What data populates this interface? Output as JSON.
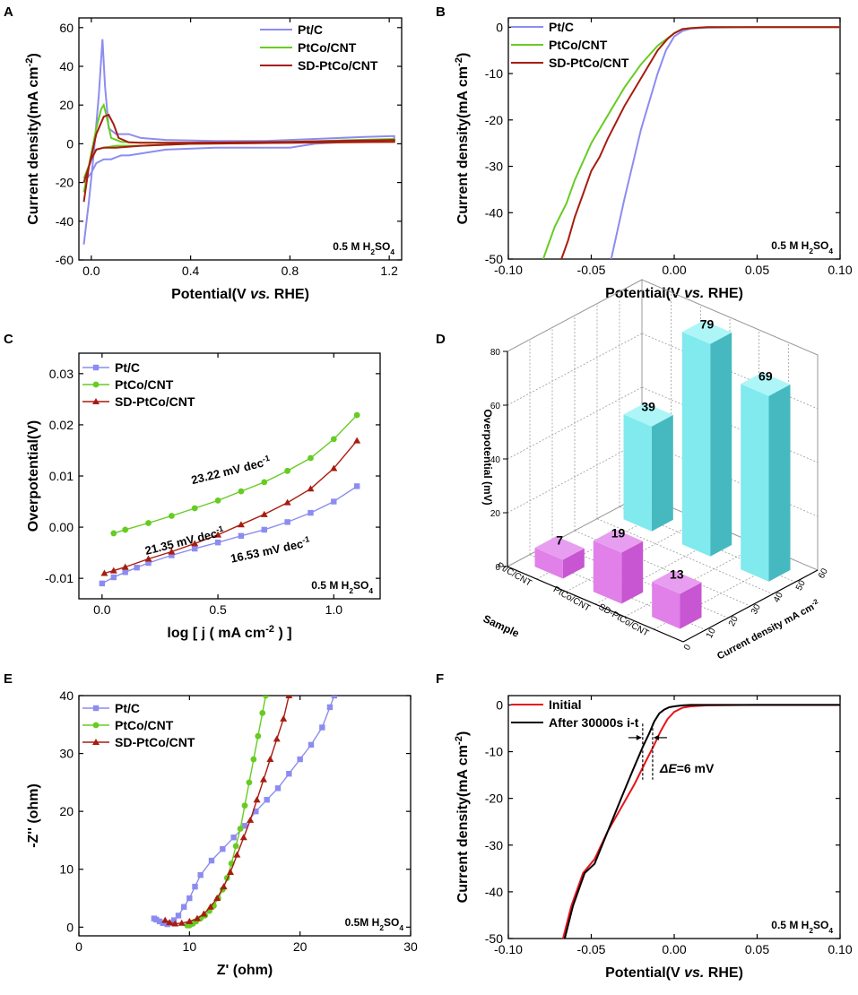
{
  "figure": {
    "panel_letters": [
      "A",
      "B",
      "C",
      "D",
      "E",
      "F"
    ]
  },
  "chart_data": [
    {
      "panel": "A",
      "type": "line",
      "xlabel": "Potential(V vs. RHE)",
      "ylabel": "Current density(mA cm-2)",
      "xlim": [
        -0.05,
        1.25
      ],
      "ylim": [
        -60,
        65
      ],
      "xticks": [
        0,
        0.4,
        0.8,
        1.2
      ],
      "xtick_labels": [
        "0.0",
        "0.4",
        "0.8",
        "1.2"
      ],
      "yticks": [
        -60,
        -40,
        -20,
        0,
        20,
        40,
        60
      ],
      "annotation": "0.5 M H2SO4",
      "legend": "top-right",
      "series": [
        {
          "name": "Pt/C",
          "color": "#8c8cf0",
          "x": [
            -0.03,
            -0.01,
            0.01,
            0.03,
            0.045,
            0.055,
            0.07,
            0.1,
            0.15,
            0.2,
            0.3,
            0.5,
            0.7,
            0.9,
            1.1,
            1.22,
            1.22,
            1.1,
            0.9,
            0.8,
            0.7,
            0.5,
            0.3,
            0.2,
            0.15,
            0.12,
            0.1,
            0.08,
            0.05,
            0.02,
            0,
            -0.03
          ],
          "y": [
            -52,
            -30,
            -5,
            25,
            54,
            30,
            8,
            5,
            5,
            3,
            2,
            1.5,
            1.5,
            2.5,
            3.5,
            4,
            2,
            1.5,
            0,
            -2,
            -2,
            -2,
            -3,
            -5,
            -6,
            -6,
            -7,
            -8,
            -8,
            -10,
            -15,
            -20
          ]
        },
        {
          "name": "PtCo/CNT",
          "color": "#66cc22",
          "x": [
            -0.03,
            0,
            0.02,
            0.04,
            0.05,
            0.06,
            0.08,
            0.12,
            0.2,
            0.4,
            0.8,
            1.22,
            1.22,
            0.8,
            0.4,
            0.2,
            0.1,
            0.05,
            0.02,
            0,
            -0.03
          ],
          "y": [
            -25,
            -5,
            8,
            18,
            20,
            15,
            3,
            1,
            0.5,
            0.5,
            1,
            2.5,
            1,
            0.5,
            0,
            -1,
            -1,
            -2,
            -3,
            -8,
            -18
          ]
        },
        {
          "name": "SD-PtCo/CNT",
          "color": "#a81c10",
          "x": [
            -0.03,
            -0.01,
            0.02,
            0.05,
            0.07,
            0.09,
            0.11,
            0.15,
            0.2,
            0.4,
            0.8,
            1.22,
            1.22,
            0.8,
            0.4,
            0.2,
            0.1,
            0.05,
            0.02,
            0,
            -0.03
          ],
          "y": [
            -30,
            -12,
            5,
            14,
            15,
            10,
            3,
            0.8,
            0.5,
            0.5,
            1,
            2,
            1,
            0.5,
            0,
            -1,
            -2,
            -2,
            -3,
            -8,
            -20
          ]
        }
      ]
    },
    {
      "panel": "B",
      "type": "line",
      "xlabel": "Potential(V vs. RHE)",
      "ylabel": "Current density(mA cm-2)",
      "xlim": [
        -0.1,
        0.1
      ],
      "ylim": [
        -50,
        2
      ],
      "xticks": [
        -0.1,
        -0.05,
        0,
        0.05,
        0.1
      ],
      "xtick_labels": [
        "-0.10",
        "-0.05",
        "0.00",
        "0.05",
        "0.10"
      ],
      "yticks": [
        -50,
        -40,
        -30,
        -20,
        -10,
        0
      ],
      "annotation": "0.5 M H2SO4",
      "legend": "top-left",
      "series": [
        {
          "name": "Pt/C",
          "color": "#8c8cf0",
          "x": [
            -0.038,
            -0.03,
            -0.02,
            -0.01,
            -0.005,
            0,
            0.005,
            0.01,
            0.02,
            0.05,
            0.1
          ],
          "y": [
            -50,
            -37,
            -22,
            -10,
            -5,
            -2,
            -0.8,
            -0.3,
            -0.1,
            0,
            0
          ]
        },
        {
          "name": "PtCo/CNT",
          "color": "#66cc22",
          "x": [
            -0.079,
            -0.077,
            -0.072,
            -0.065,
            -0.06,
            -0.055,
            -0.05,
            -0.04,
            -0.03,
            -0.02,
            -0.01,
            0,
            0.005,
            0.01,
            0.02,
            0.05,
            0.1
          ],
          "y": [
            -50,
            -48,
            -43,
            -38,
            -33,
            -29,
            -25,
            -19,
            -13,
            -8,
            -4,
            -1.3,
            -0.4,
            -0.2,
            0,
            0,
            0
          ]
        },
        {
          "name": "SD-PtCo/CNT",
          "color": "#a81c10",
          "x": [
            -0.068,
            -0.064,
            -0.06,
            -0.055,
            -0.05,
            -0.045,
            -0.04,
            -0.03,
            -0.02,
            -0.01,
            -0.004,
            0,
            0.005,
            0.01,
            0.02,
            0.05,
            0.1
          ],
          "y": [
            -50,
            -46,
            -41,
            -36,
            -31,
            -28,
            -24,
            -17,
            -11,
            -5,
            -2.5,
            -1.3,
            -0.4,
            -0.2,
            0,
            0,
            0
          ]
        }
      ]
    },
    {
      "panel": "C",
      "type": "line",
      "xlabel": "log [ j ( mA cm-2 ) ]",
      "ylabel": "Overpotential(V)",
      "xlim": [
        -0.1,
        1.2
      ],
      "ylim": [
        -0.014,
        0.034
      ],
      "xticks": [
        0,
        0.5,
        1
      ],
      "xtick_labels": [
        "0.0",
        "0.5",
        "1.0"
      ],
      "yticks": [
        -0.01,
        0,
        0.01,
        0.02,
        0.03
      ],
      "ytick_labels": [
        "-0.01",
        "0.00",
        "0.01",
        "0.02",
        "0.03"
      ],
      "annotation": "0.5 M H2SO4",
      "legend": "top-left",
      "slope_labels": [
        {
          "text": "23.22 mV dec-1",
          "color": "#66cc22",
          "x": 0.56,
          "y": 0.0103
        },
        {
          "text": "21.35 mV dec-1",
          "color": "#a81c10",
          "x": 0.36,
          "y": -0.0035
        },
        {
          "text": "16.53 mV dec-1",
          "color": "#8822cc",
          "x": 0.73,
          "y": -0.0053
        }
      ],
      "series": [
        {
          "name": "Pt/C",
          "color": "#8c8cf0",
          "x": [
            0,
            0.05,
            0.1,
            0.15,
            0.2,
            0.3,
            0.4,
            0.5,
            0.6,
            0.7,
            0.8,
            0.9,
            1,
            1.1
          ],
          "y": [
            -0.011,
            -0.0098,
            -0.0088,
            -0.0079,
            -0.007,
            -0.0055,
            -0.0042,
            -0.003,
            -0.0017,
            -0.0005,
            0.001,
            0.0028,
            0.005,
            0.008
          ]
        },
        {
          "name": "PtCo/CNT",
          "color": "#66cc22",
          "x": [
            0.05,
            0.1,
            0.2,
            0.3,
            0.4,
            0.5,
            0.6,
            0.7,
            0.8,
            0.9,
            1,
            1.1
          ],
          "y": [
            -0.0012,
            -0.0005,
            0.0008,
            0.0022,
            0.0037,
            0.0052,
            0.007,
            0.0088,
            0.011,
            0.0135,
            0.0172,
            0.0219
          ]
        },
        {
          "name": "SD-PtCo/CNT",
          "color": "#a81c10",
          "x": [
            0.01,
            0.05,
            0.1,
            0.2,
            0.3,
            0.4,
            0.5,
            0.6,
            0.7,
            0.8,
            0.9,
            1,
            1.1
          ],
          "y": [
            -0.009,
            -0.0085,
            -0.0078,
            -0.0062,
            -0.0048,
            -0.0032,
            -0.0015,
            0.0005,
            0.0025,
            0.0048,
            0.0075,
            0.0115,
            0.0169
          ]
        }
      ]
    },
    {
      "panel": "D",
      "type": "bar3d",
      "zlabel": "Overpotential (mV)",
      "xaxis_label": "Sample",
      "yaxis_label": "Current density mA cm-2",
      "categories": [
        "Pt/C",
        "PtCo/CNT",
        "SD-PtCo/CNT"
      ],
      "category_labels": [
        "Pt/C/CNT",
        "PtCo/CNT",
        "SD-PtCo/CNT"
      ],
      "zticks": [
        0,
        20,
        40,
        60,
        80
      ],
      "depth_ticks": [
        0,
        10,
        20,
        30,
        40,
        50,
        60
      ],
      "bars": [
        {
          "name": "10 mA cm-2",
          "color": "#e080e8",
          "values": [
            7,
            19,
            13
          ]
        },
        {
          "name": "50 mA cm-2",
          "color": "#80eaee",
          "values": [
            39,
            79,
            69
          ]
        }
      ]
    },
    {
      "panel": "E",
      "type": "scatter",
      "xlabel": "Z' (ohm)",
      "ylabel": "-Z'' (ohm)",
      "xlim": [
        0,
        30
      ],
      "ylim": [
        -1.5,
        40
      ],
      "xticks": [
        0,
        10,
        20,
        30
      ],
      "yticks": [
        0,
        10,
        20,
        30,
        40
      ],
      "annotation": "0.5M H2SO4",
      "legend": "top-left",
      "series": [
        {
          "name": "Pt/C",
          "color": "#8c8cf0",
          "x": [
            6.8,
            7,
            7.3,
            7.6,
            8,
            8.3,
            8.6,
            9,
            9.5,
            10,
            10.5,
            11,
            12,
            13,
            14,
            15,
            16,
            17,
            18,
            19,
            20,
            21,
            22,
            22.7,
            23.1
          ],
          "y": [
            1.5,
            1.3,
            1,
            0.7,
            0.5,
            0.7,
            1.2,
            2,
            3.5,
            5,
            7,
            9,
            11.5,
            13.5,
            15.5,
            17.5,
            20,
            22,
            24,
            26.5,
            29,
            31.5,
            34.5,
            38,
            40
          ]
        },
        {
          "name": "PtCo/CNT",
          "color": "#66cc22",
          "x": [
            9.8,
            10,
            10.3,
            10.6,
            11,
            11.4,
            11.8,
            12.2,
            12.6,
            13,
            13.4,
            13.8,
            14.2,
            14.6,
            15,
            15.4,
            15.8,
            16.2,
            16.6,
            16.9
          ],
          "y": [
            0.3,
            0.3,
            0.6,
            1,
            1.5,
            2,
            2.8,
            3.7,
            5,
            6.5,
            8.5,
            11,
            14,
            17,
            21,
            25,
            29,
            33,
            37,
            40
          ]
        },
        {
          "name": "SD-PtCo/CNT",
          "color": "#a81c10",
          "x": [
            7.8,
            8.2,
            8.7,
            9.3,
            10,
            10.7,
            11.3,
            11.9,
            12.5,
            13.1,
            13.7,
            14.3,
            14.9,
            15.5,
            16.1,
            16.7,
            17.3,
            17.9,
            18.5,
            19
          ],
          "y": [
            1.2,
            0.8,
            0.6,
            0.7,
            1,
            1.5,
            2.3,
            3.5,
            5,
            7,
            9.5,
            12.5,
            15.5,
            18.5,
            22,
            25.5,
            29,
            32.5,
            36,
            40
          ]
        }
      ]
    },
    {
      "panel": "F",
      "type": "line",
      "xlabel": "Potential(V vs. RHE)",
      "ylabel": "Current density(mA cm-2)",
      "xlim": [
        -0.1,
        0.1
      ],
      "ylim": [
        -50,
        2
      ],
      "xticks": [
        -0.1,
        -0.05,
        0,
        0.05,
        0.1
      ],
      "xtick_labels": [
        "-0.10",
        "-0.05",
        "0.00",
        "0.05",
        "0.10"
      ],
      "yticks": [
        -50,
        -40,
        -30,
        -20,
        -10,
        0
      ],
      "annotation": "0.5 M H2SO4",
      "legend": "top-left",
      "delta_label": "ΔE=6 mV",
      "series": [
        {
          "name": "Initial",
          "color": "#e8141c",
          "x": [
            -0.067,
            -0.062,
            -0.055,
            -0.048,
            -0.04,
            -0.032,
            -0.024,
            -0.017,
            -0.012,
            -0.008,
            -0.004,
            0,
            0.005,
            0.01,
            0.02,
            0.05,
            0.1
          ],
          "y": [
            -50,
            -43,
            -36,
            -33,
            -27,
            -22,
            -17,
            -12,
            -8.5,
            -5.5,
            -3,
            -1.5,
            -0.6,
            -0.3,
            -0.1,
            0,
            0
          ]
        },
        {
          "name": "After 30000s i-t",
          "color": "#000000",
          "x": [
            -0.066,
            -0.061,
            -0.054,
            -0.048,
            -0.04,
            -0.032,
            -0.025,
            -0.019,
            -0.015,
            -0.012,
            -0.009,
            -0.006,
            -0.003,
            0,
            0.005,
            0.01,
            0.02,
            0.05,
            0.1
          ],
          "y": [
            -50,
            -43,
            -36,
            -34,
            -27,
            -20,
            -14,
            -9,
            -6,
            -3.5,
            -1.8,
            -1,
            -0.5,
            -0.3,
            -0.1,
            0,
            0,
            0,
            0
          ]
        }
      ]
    }
  ]
}
